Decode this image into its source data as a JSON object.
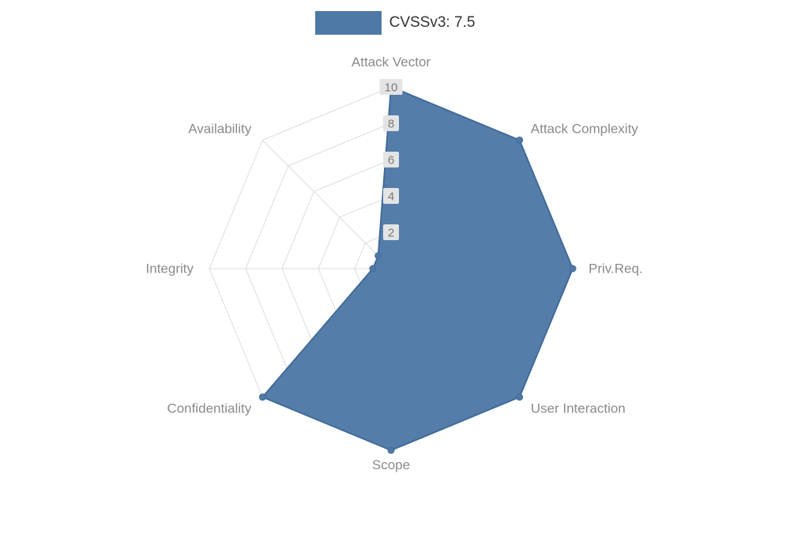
{
  "legend": {
    "items": [
      {
        "label": "CVSSv3: 7.5",
        "color": "#4e79a7"
      }
    ]
  },
  "chart_data": {
    "type": "radar",
    "title": "CVSSv3: 7.5",
    "axes": [
      "Attack Vector",
      "Attack Complexity",
      "Priv.Req.",
      "User Interaction",
      "Scope",
      "Confidentiality",
      "Integrity",
      "Availability"
    ],
    "series": [
      {
        "name": "CVSSv3: 7.5",
        "values": [
          10,
          10,
          10,
          10,
          10,
          10,
          1,
          1
        ],
        "color": "#4e79a7",
        "line_color": "#416b98"
      }
    ],
    "axis_range": [
      0,
      10
    ],
    "max": 10,
    "ticks": [
      2,
      4,
      6,
      8,
      10
    ],
    "grid_on": true,
    "grid_color": "#dcdcdc",
    "axis_label_color": "#8a8a8a",
    "tick_label_color": "#7a7a7a",
    "tick_label_bg": "#e4e4e4",
    "legend_position": "top-center"
  }
}
